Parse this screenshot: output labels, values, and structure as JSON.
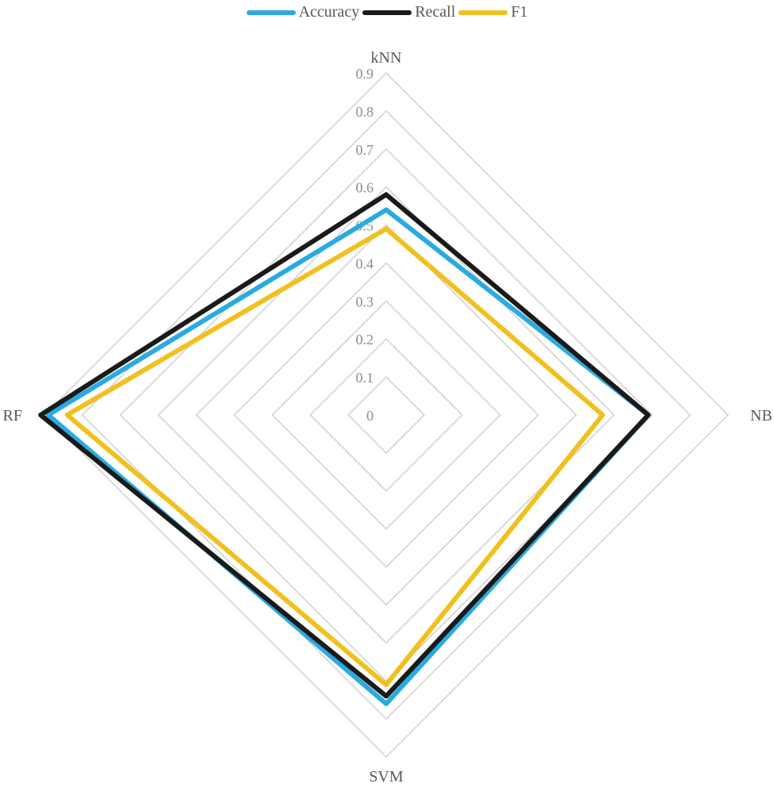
{
  "chart_data": {
    "type": "radar",
    "categories": [
      "kNN",
      "NB",
      "SVM",
      "RF"
    ],
    "rmax": 0.9,
    "ticks": [
      "0",
      "0.1",
      "0.2",
      "0.3",
      "0.4",
      "0.5",
      "0.6",
      "0.7",
      "0.8",
      "0.9"
    ],
    "grid": true,
    "legend_position": "top",
    "series": [
      {
        "name": "Accuracy",
        "color": "#29abe2",
        "values": [
          0.54,
          0.69,
          0.76,
          0.89
        ]
      },
      {
        "name": "Recall",
        "color": "#1a1a1a",
        "values": [
          0.58,
          0.69,
          0.74,
          0.91
        ]
      },
      {
        "name": "F1",
        "color": "#f2c01e",
        "values": [
          0.49,
          0.57,
          0.71,
          0.84
        ]
      }
    ]
  }
}
